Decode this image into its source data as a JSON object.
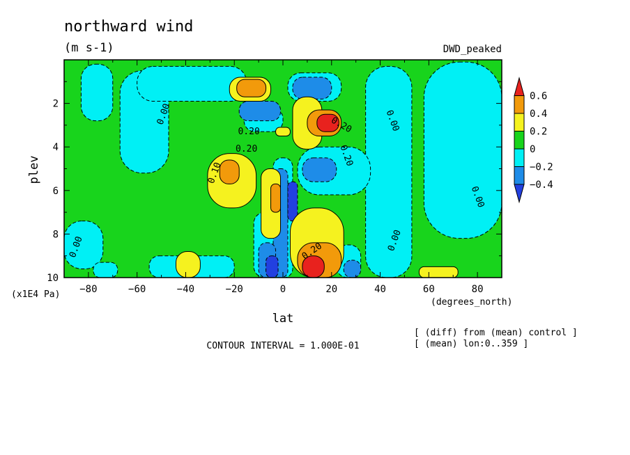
{
  "chart_data": {
    "type": "heatmap",
    "title": "northward wind",
    "units": "(m s-1)",
    "experiment": "DWD_peaked",
    "xlabel": "lat",
    "xunits": "(degrees_north)",
    "ylabel": "plev",
    "yunits": "(x1E4 Pa)",
    "xlim": [
      -90,
      90
    ],
    "ylim": [
      0,
      10
    ],
    "y_inverted": true,
    "x_ticks": [
      -80,
      -60,
      -40,
      -20,
      0,
      20,
      40,
      60,
      80
    ],
    "y_ticks": [
      2,
      4,
      6,
      8,
      10
    ],
    "contour_interval": "CONTOUR INTERVAL = 1.000E-01",
    "notes": [
      "[ (diff) from (mean) control ]",
      "[ (mean) lon:0..359 ]"
    ],
    "colorbar": {
      "labels": [
        "0.6",
        "0.4",
        "0.2",
        "0",
        "−0.2",
        "−0.4"
      ],
      "colors": [
        "#e8221e",
        "#f29a0b",
        "#f5f21f",
        "#18d41c",
        "#00f0f5",
        "#1e8ce8",
        "#2240e0"
      ]
    },
    "contour_labels": [
      {
        "text": "0.00",
        "lat": -49,
        "plev": 2.5,
        "angle": 70
      },
      {
        "text": "0.20",
        "lat": -14,
        "plev": 3.3,
        "angle": 0
      },
      {
        "text": "0.20",
        "lat": -15,
        "plev": 4.1,
        "angle": 0
      },
      {
        "text": "0.10",
        "lat": -28,
        "plev": 5.2,
        "angle": 70
      },
      {
        "text": "0.00",
        "lat": 45,
        "plev": 2.8,
        "angle": -70
      },
      {
        "text": "0.20",
        "lat": 26,
        "plev": 4.4,
        "angle": -70
      },
      {
        "text": "0.00",
        "lat": 80,
        "plev": 6.3,
        "angle": -70
      },
      {
        "text": "0.00",
        "lat": -85,
        "plev": 8.6,
        "angle": 70
      },
      {
        "text": "0.00",
        "lat": 46,
        "plev": 8.3,
        "angle": 70
      },
      {
        "text": "0.20",
        "lat": 12,
        "plev": 8.8,
        "angle": 35
      },
      {
        "text": "0.20",
        "lat": 24,
        "plev": 3.0,
        "angle": -30
      }
    ],
    "regions": [
      {
        "level": 0,
        "lat": [
          -90,
          90
        ],
        "plev": [
          0,
          10
        ]
      },
      {
        "level": -1,
        "lat": [
          -67,
          -47
        ],
        "plev": [
          0.5,
          5.2
        ]
      },
      {
        "level": -1,
        "lat": [
          -83,
          -70
        ],
        "plev": [
          0.2,
          2.8
        ]
      },
      {
        "level": -1,
        "lat": [
          -60,
          -15
        ],
        "plev": [
          0.3,
          1.9
        ]
      },
      {
        "level": -1,
        "lat": [
          34,
          53
        ],
        "plev": [
          0.3,
          10
        ]
      },
      {
        "level": -1,
        "lat": [
          58,
          90
        ],
        "plev": [
          0.1,
          8.2
        ]
      },
      {
        "level": -1,
        "lat": [
          -90,
          -74
        ],
        "plev": [
          7.4,
          9.6
        ]
      },
      {
        "level": -1,
        "lat": [
          -55,
          -20
        ],
        "plev": [
          9.0,
          10
        ]
      },
      {
        "level": -1,
        "lat": [
          -17,
          -9
        ],
        "plev": [
          0.9,
          1.6
        ]
      },
      {
        "level": -1,
        "lat": [
          -16,
          0
        ],
        "plev": [
          2.2,
          3.3
        ]
      },
      {
        "level": -1,
        "lat": [
          6,
          36
        ],
        "plev": [
          4.0,
          6.2
        ]
      },
      {
        "level": -1,
        "lat": [
          -4,
          4
        ],
        "plev": [
          4.5,
          10
        ]
      },
      {
        "level": -1,
        "lat": [
          -12,
          -2
        ],
        "plev": [
          7.0,
          10
        ]
      },
      {
        "level": -1,
        "lat": [
          22,
          32
        ],
        "plev": [
          8.5,
          10
        ]
      },
      {
        "level": -1,
        "lat": [
          -78,
          -68
        ],
        "plev": [
          9.3,
          10
        ]
      },
      {
        "level": -1,
        "lat": [
          2,
          24
        ],
        "plev": [
          0.6,
          1.9
        ]
      },
      {
        "level": -2,
        "lat": [
          4,
          20
        ],
        "plev": [
          0.8,
          1.8
        ]
      },
      {
        "level": -2,
        "lat": [
          -18,
          -1
        ],
        "plev": [
          1.9,
          2.8
        ]
      },
      {
        "level": -2,
        "lat": [
          8,
          22
        ],
        "plev": [
          4.5,
          5.6
        ]
      },
      {
        "level": -2,
        "lat": [
          -4,
          2
        ],
        "plev": [
          5.0,
          10
        ]
      },
      {
        "level": -2,
        "lat": [
          -10,
          -3
        ],
        "plev": [
          8.4,
          10
        ]
      },
      {
        "level": -2,
        "lat": [
          25,
          32
        ],
        "plev": [
          9.2,
          10
        ]
      },
      {
        "level": -3,
        "lat": [
          2,
          6
        ],
        "plev": [
          5.6,
          7.4
        ]
      },
      {
        "level": -3,
        "lat": [
          -7,
          -2
        ],
        "plev": [
          9.0,
          10
        ]
      },
      {
        "level": 1,
        "lat": [
          -31,
          -11
        ],
        "plev": [
          4.3,
          6.8
        ]
      },
      {
        "level": 1,
        "lat": [
          -9,
          -1
        ],
        "plev": [
          5.0,
          8.2
        ]
      },
      {
        "level": 1,
        "lat": [
          -22,
          -5
        ],
        "plev": [
          0.8,
          1.9
        ]
      },
      {
        "level": 1,
        "lat": [
          4,
          16
        ],
        "plev": [
          1.7,
          4.1
        ]
      },
      {
        "level": 1,
        "lat": [
          3,
          25
        ],
        "plev": [
          6.8,
          10
        ]
      },
      {
        "level": 1,
        "lat": [
          -44,
          -34
        ],
        "plev": [
          8.8,
          10
        ]
      },
      {
        "level": 1,
        "lat": [
          56,
          72
        ],
        "plev": [
          9.5,
          10
        ]
      },
      {
        "level": 1,
        "lat": [
          -3,
          3
        ],
        "plev": [
          3.1,
          3.5
        ]
      },
      {
        "level": 2,
        "lat": [
          10,
          24
        ],
        "plev": [
          2.3,
          3.5
        ]
      },
      {
        "level": 2,
        "lat": [
          -19,
          -7
        ],
        "plev": [
          0.9,
          1.7
        ]
      },
      {
        "level": 2,
        "lat": [
          -26,
          -18
        ],
        "plev": [
          4.6,
          5.7
        ]
      },
      {
        "level": 2,
        "lat": [
          -5,
          -1
        ],
        "plev": [
          5.7,
          7.0
        ]
      },
      {
        "level": 2,
        "lat": [
          6,
          24
        ],
        "plev": [
          8.4,
          10
        ]
      },
      {
        "level": 3,
        "lat": [
          14,
          23
        ],
        "plev": [
          2.5,
          3.3
        ]
      },
      {
        "level": 3,
        "lat": [
          8,
          17
        ],
        "plev": [
          9.0,
          10
        ]
      }
    ]
  }
}
